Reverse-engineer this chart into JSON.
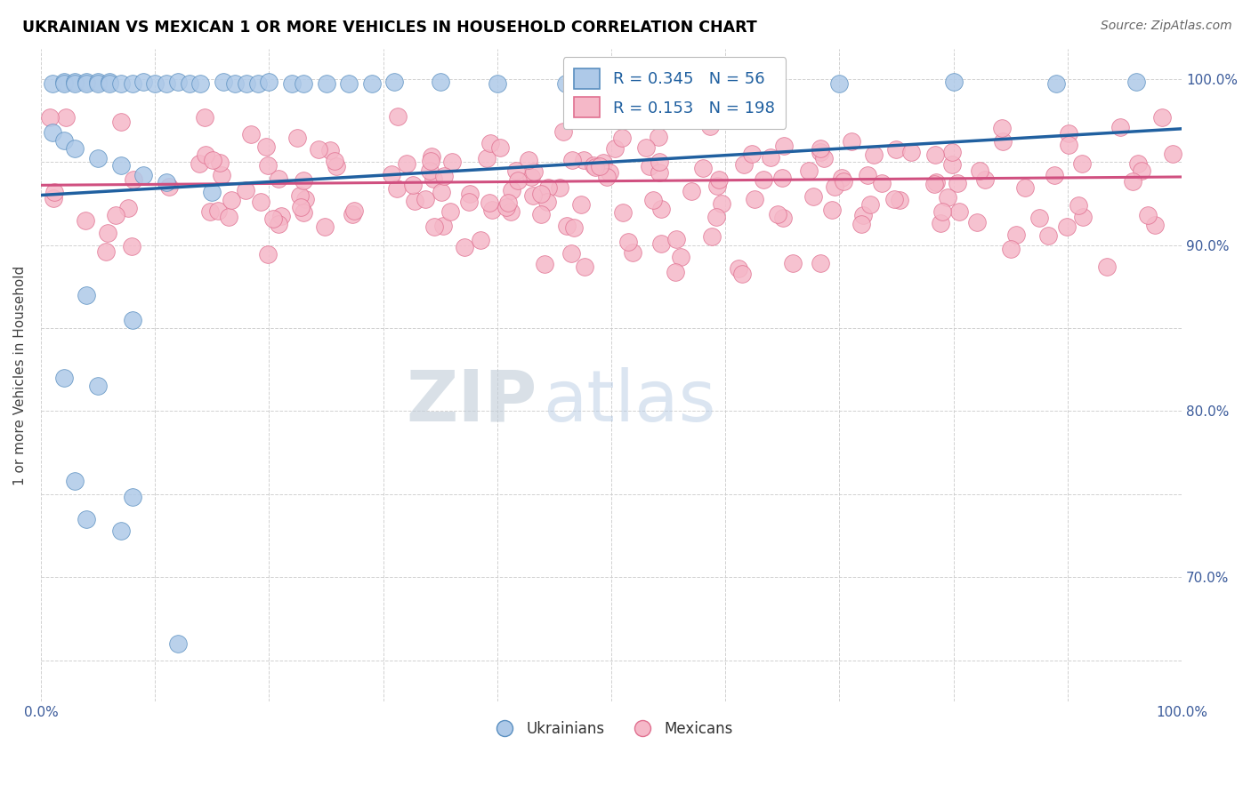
{
  "title": "UKRAINIAN VS MEXICAN 1 OR MORE VEHICLES IN HOUSEHOLD CORRELATION CHART",
  "source": "Source: ZipAtlas.com",
  "ylabel": "1 or more Vehicles in Household",
  "xmin": 0.0,
  "xmax": 1.0,
  "ymin": 0.625,
  "ymax": 1.018,
  "ytick_vals": [
    0.65,
    0.7,
    0.75,
    0.8,
    0.85,
    0.9,
    0.95,
    1.0
  ],
  "ytick_labels": [
    "",
    "70.0%",
    "",
    "80.0%",
    "",
    "90.0%",
    "",
    "100.0%"
  ],
  "xtick_vals": [
    0.0,
    0.1,
    0.2,
    0.3,
    0.4,
    0.5,
    0.6,
    0.7,
    0.8,
    0.9,
    1.0
  ],
  "xtick_labels": [
    "0.0%",
    "",
    "",
    "",
    "",
    "",
    "",
    "",
    "",
    "",
    "100.0%"
  ],
  "blue_color": "#aec9e8",
  "pink_color": "#f5b8c8",
  "blue_edge_color": "#5a8fc0",
  "pink_edge_color": "#e07090",
  "blue_line_color": "#2060a0",
  "pink_line_color": "#d05080",
  "R_blue": 0.345,
  "N_blue": 56,
  "R_pink": 0.153,
  "N_pink": 198,
  "legend_labels": [
    "Ukrainians",
    "Mexicans"
  ],
  "watermark_zip": "ZIP",
  "watermark_atlas": "atlas",
  "blue_points": [
    [
      0.01,
      0.997
    ],
    [
      0.02,
      0.998
    ],
    [
      0.02,
      0.997
    ],
    [
      0.03,
      0.998
    ],
    [
      0.03,
      0.997
    ],
    [
      0.04,
      0.998
    ],
    [
      0.04,
      0.997
    ],
    [
      0.05,
      0.998
    ],
    [
      0.05,
      0.997
    ],
    [
      0.06,
      0.998
    ],
    [
      0.06,
      0.997
    ],
    [
      0.07,
      0.997
    ],
    [
      0.08,
      0.997
    ],
    [
      0.09,
      0.998
    ],
    [
      0.1,
      0.997
    ],
    [
      0.11,
      0.997
    ],
    [
      0.12,
      0.998
    ],
    [
      0.13,
      0.997
    ],
    [
      0.14,
      0.997
    ],
    [
      0.16,
      0.998
    ],
    [
      0.17,
      0.997
    ],
    [
      0.18,
      0.997
    ],
    [
      0.19,
      0.997
    ],
    [
      0.2,
      0.998
    ],
    [
      0.22,
      0.997
    ],
    [
      0.23,
      0.997
    ],
    [
      0.25,
      0.997
    ],
    [
      0.27,
      0.997
    ],
    [
      0.29,
      0.997
    ],
    [
      0.31,
      0.998
    ],
    [
      0.35,
      0.998
    ],
    [
      0.4,
      0.997
    ],
    [
      0.46,
      0.997
    ],
    [
      0.53,
      0.997
    ],
    [
      0.61,
      0.998
    ],
    [
      0.7,
      0.997
    ],
    [
      0.8,
      0.998
    ],
    [
      0.89,
      0.997
    ],
    [
      0.96,
      0.998
    ],
    [
      0.01,
      0.968
    ],
    [
      0.02,
      0.963
    ],
    [
      0.03,
      0.958
    ],
    [
      0.05,
      0.952
    ],
    [
      0.07,
      0.948
    ],
    [
      0.09,
      0.942
    ],
    [
      0.11,
      0.938
    ],
    [
      0.15,
      0.932
    ],
    [
      0.04,
      0.87
    ],
    [
      0.08,
      0.855
    ],
    [
      0.02,
      0.82
    ],
    [
      0.05,
      0.815
    ],
    [
      0.03,
      0.758
    ],
    [
      0.08,
      0.748
    ],
    [
      0.04,
      0.735
    ],
    [
      0.07,
      0.728
    ],
    [
      0.12,
      0.66
    ]
  ],
  "pink_points_seed": 77
}
